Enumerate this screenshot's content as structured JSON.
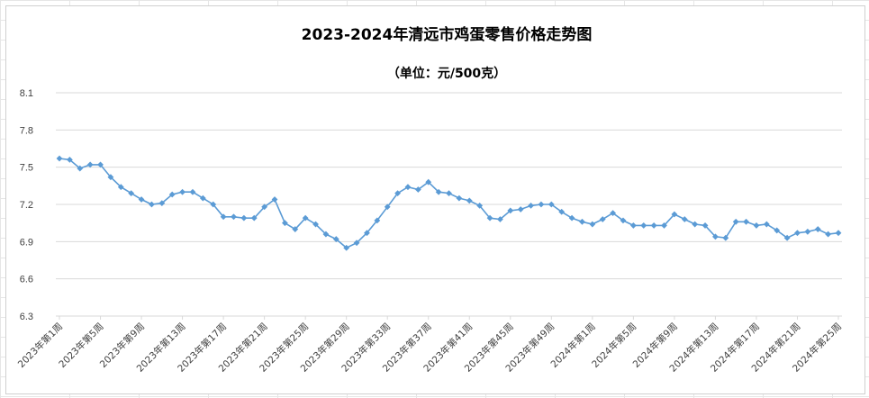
{
  "chart_data": {
    "type": "line",
    "title": "2023-2024年清远市鸡蛋零售价格走势图",
    "subtitle": "（单位：元/500克）",
    "xlabel": "",
    "ylabel": "",
    "ylim": [
      6.3,
      8.1
    ],
    "yticks": [
      "8.1",
      "7.8",
      "7.5",
      "7.2",
      "6.9",
      "6.6",
      "6.3"
    ],
    "grid": true,
    "legend": "none",
    "color": "#5b9bd5",
    "tick_labels": [
      "2023年第1周",
      "2023年第5周",
      "2023年第9周",
      "2023年第13周",
      "2023年第17周",
      "2023年第21周",
      "2023年第25周",
      "2023年第29周",
      "2023年第33周",
      "2023年第37周",
      "2023年第41周",
      "2023年第45周",
      "2023年第49周",
      "2024年第1周",
      "2024年第5周",
      "2024年第9周",
      "2024年第13周",
      "2024年第17周",
      "2024年第21周",
      "2024年第25周"
    ],
    "series": [
      {
        "values": [
          7.57,
          7.56,
          7.49,
          7.52,
          7.52,
          7.42,
          7.34,
          7.29,
          7.24,
          7.2,
          7.21,
          7.28,
          7.3,
          7.3,
          7.25,
          7.2,
          7.1,
          7.1,
          7.09,
          7.09,
          7.18,
          7.24,
          7.05,
          7.0,
          7.09,
          7.04,
          6.96,
          6.92,
          6.85,
          6.89,
          6.97,
          7.07,
          7.18,
          7.29,
          7.34,
          7.32,
          7.38,
          7.3,
          7.29,
          7.25,
          7.23,
          7.19,
          7.09,
          7.08,
          7.15,
          7.16,
          7.19,
          7.2,
          7.2,
          7.14,
          7.09,
          7.06,
          7.04,
          7.08,
          7.13,
          7.07,
          7.03,
          7.03,
          7.03,
          7.03,
          7.12,
          7.08,
          7.04,
          7.03,
          6.94,
          6.93,
          7.06,
          7.06,
          7.03,
          7.04,
          6.99,
          6.93,
          6.97,
          6.98,
          7.0,
          6.96,
          6.97
        ]
      }
    ]
  }
}
